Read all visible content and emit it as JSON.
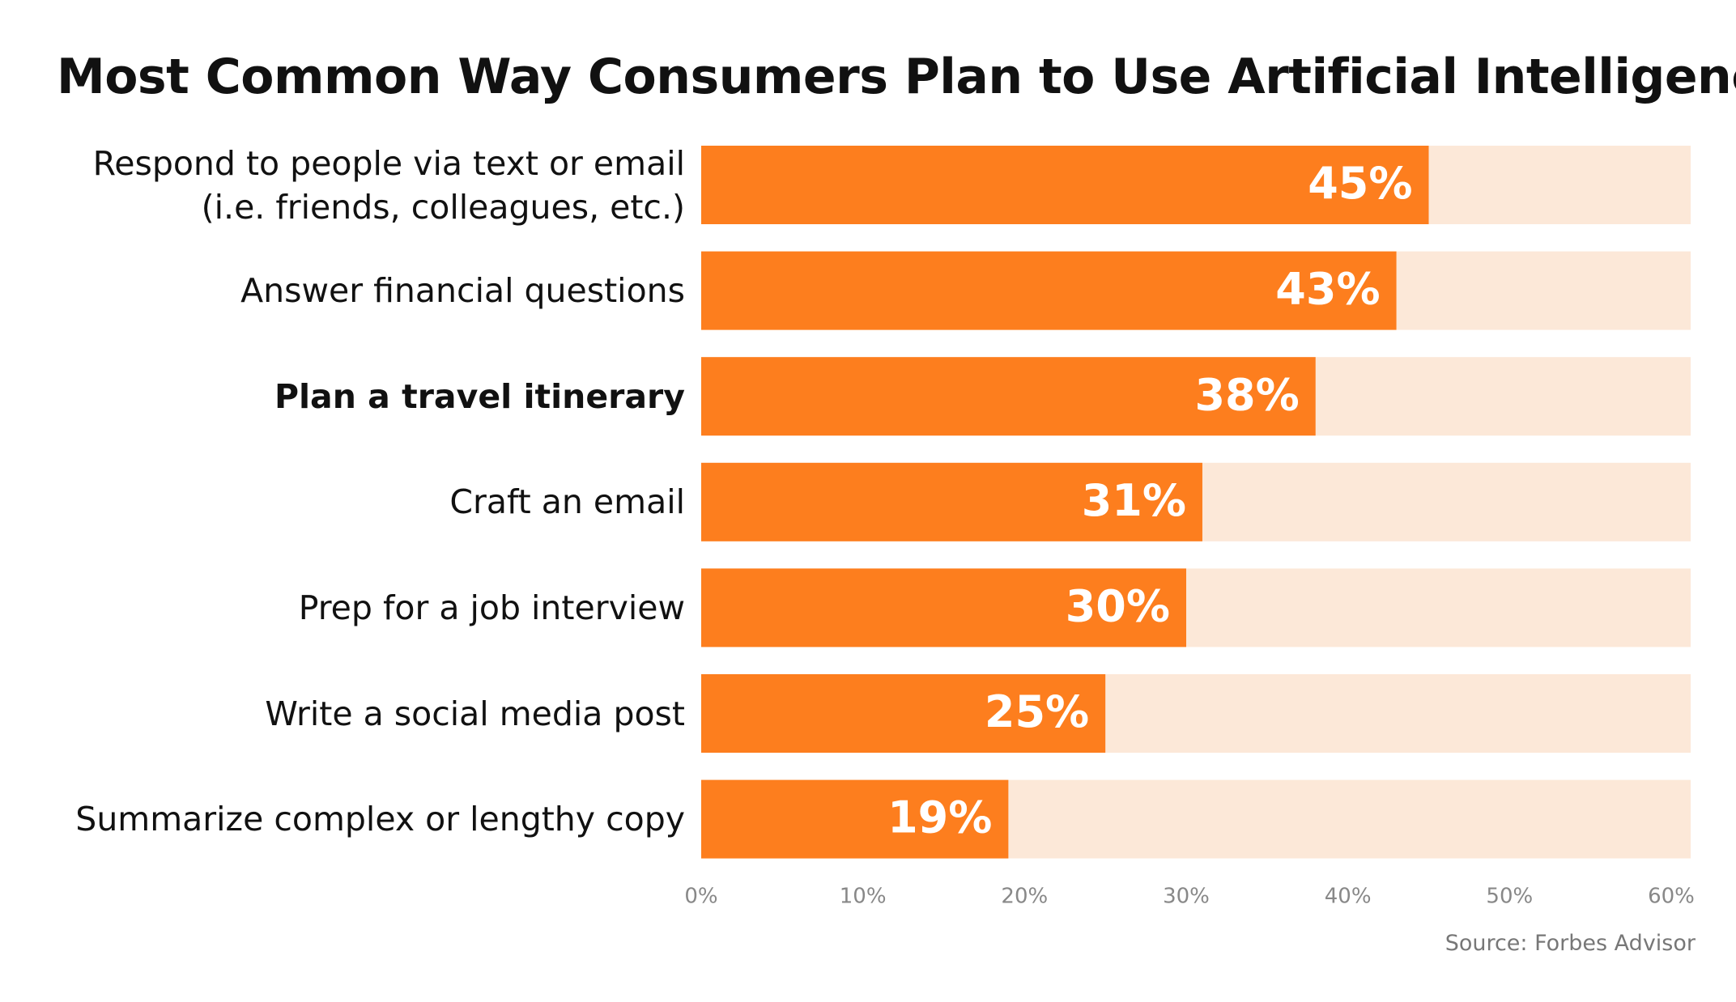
{
  "chart_data": {
    "type": "bar",
    "orientation": "horizontal",
    "title": "Most Common Way Consumers Plan to Use Artificial Intelligence",
    "categories": [
      "Respond to people via text or email\n(i.e. friends, colleagues, etc.)",
      "Answer financial questions",
      "Plan a travel itinerary",
      "Craft an email",
      "Prep for a job interview",
      "Write a social media post",
      "Summarize complex or lengthy copy"
    ],
    "values": [
      45,
      43,
      38,
      31,
      30,
      25,
      19
    ],
    "value_labels": [
      "45%",
      "43%",
      "38%",
      "31%",
      "30%",
      "25%",
      "19%"
    ],
    "color": "#fd7e1e",
    "track_color": "#fce8d8",
    "xlim": [
      0,
      60
    ],
    "xticks": [
      {
        "value": 0,
        "label": "0%"
      },
      {
        "value": 10,
        "label": "10%"
      },
      {
        "value": 20,
        "label": "20%"
      },
      {
        "value": 30,
        "label": "30%"
      },
      {
        "value": 40,
        "label": "40%"
      },
      {
        "value": 50,
        "label": "50%"
      },
      {
        "value": 60,
        "label": "60%"
      }
    ],
    "grid": false,
    "source": "Source: Forbes Advisor"
  }
}
